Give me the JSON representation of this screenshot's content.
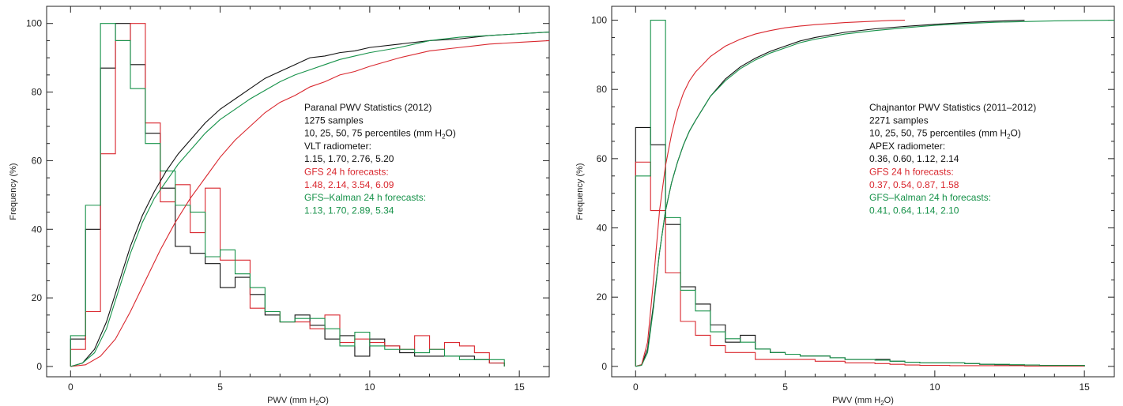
{
  "colors": {
    "black": "#111111",
    "red": "#d9272e",
    "green": "#17924a"
  },
  "chart_data": [
    {
      "type": "line",
      "xlabel": "PWV (mm H",
      "xlabel_sub": "2",
      "xlabel_end": "O)",
      "ylabel": "Frequency (%)",
      "xlim": [
        -0.8,
        16
      ],
      "ylim": [
        -3,
        105
      ],
      "x_ticks": [
        0,
        5,
        10,
        15
      ],
      "y_ticks": [
        0,
        20,
        40,
        60,
        80,
        100
      ],
      "annotation": [
        {
          "text": "Paranal PWV Statistics (2012)",
          "color": "#111111"
        },
        {
          "text": "1275 samples",
          "color": "#111111"
        },
        {
          "text": "10, 25, 50, 75 percentiles (mm H",
          "sub": "2",
          "end": "O)",
          "color": "#111111"
        },
        {
          "text": "VLT radiometer:",
          "color": "#111111"
        },
        {
          "text": "1.15, 1.70, 2.76, 5.20",
          "color": "#111111"
        },
        {
          "text": "GFS 24 h forecasts:",
          "color": "#d9272e"
        },
        {
          "text": "1.48, 2.14, 3.54, 6.09",
          "color": "#d9272e"
        },
        {
          "text": "GFS–Kalman 24 h forecasts:",
          "color": "#17924a"
        },
        {
          "text": "1.13, 1.70, 2.89, 5.34",
          "color": "#17924a"
        }
      ],
      "series": [
        {
          "color": "black",
          "kind": "hist",
          "edges": [
            0,
            0.5,
            1,
            1.5,
            2,
            2.5,
            3,
            3.5,
            4,
            4.5,
            5,
            5.5,
            6,
            6.5,
            7,
            7.5,
            8,
            8.5,
            9,
            9.5,
            10,
            10.5,
            11,
            11.5,
            12,
            12.5,
            13,
            13.5,
            14,
            14.5
          ],
          "values": [
            8,
            40,
            87,
            100,
            88,
            68,
            52,
            35,
            33,
            30,
            23,
            26,
            21,
            15,
            13,
            15,
            12,
            8,
            9,
            3,
            8,
            6,
            4,
            3,
            3,
            3,
            3,
            2,
            1
          ]
        },
        {
          "color": "red",
          "kind": "hist",
          "edges": [
            0,
            0.5,
            1,
            1.5,
            2,
            2.5,
            3,
            3.5,
            4,
            4.5,
            5,
            5.5,
            6,
            6.5,
            7,
            7.5,
            8,
            8.5,
            9,
            9.5,
            10,
            10.5,
            11,
            11.5,
            12,
            12.5,
            13,
            13.5,
            14,
            14.5
          ],
          "values": [
            5,
            16,
            62,
            95,
            100,
            71,
            48,
            53,
            39,
            52,
            31,
            31,
            17,
            16,
            13,
            13,
            11,
            15,
            7,
            8,
            7,
            6,
            5,
            9,
            5,
            7,
            6,
            4,
            1
          ]
        },
        {
          "color": "green",
          "kind": "hist",
          "edges": [
            0,
            0.5,
            1,
            1.5,
            2,
            2.5,
            3,
            3.5,
            4,
            4.5,
            5,
            5.5,
            6,
            6.5,
            7,
            7.5,
            8,
            8.5,
            9,
            9.5,
            10,
            10.5,
            11,
            11.5,
            12,
            12.5,
            13,
            13.5,
            14,
            14.5
          ],
          "values": [
            9,
            47,
            100,
            95,
            81,
            65,
            57,
            47,
            45,
            32,
            34,
            27,
            23,
            16,
            13,
            14,
            14,
            11,
            6,
            10,
            6,
            5,
            5,
            4,
            5,
            3,
            2,
            2,
            2
          ]
        },
        {
          "color": "black",
          "kind": "cdf",
          "x": [
            0,
            0.4,
            0.8,
            1.2,
            1.6,
            2,
            2.4,
            2.8,
            3.2,
            3.6,
            4,
            4.5,
            5,
            5.5,
            6,
            6.5,
            7,
            7.5,
            8,
            8.5,
            9,
            9.5,
            10,
            11,
            12,
            13,
            14,
            15,
            16
          ],
          "y": [
            0,
            1,
            5,
            13,
            24,
            35,
            44,
            51,
            57,
            62,
            66,
            71,
            75,
            78,
            81,
            84,
            86,
            88,
            90,
            90.5,
            91.5,
            92,
            93,
            94,
            95,
            95.5,
            96.5,
            97,
            97.5
          ]
        },
        {
          "color": "red",
          "kind": "cdf",
          "x": [
            0,
            0.5,
            1,
            1.5,
            2,
            2.5,
            3,
            3.5,
            4,
            4.5,
            5,
            5.5,
            6,
            6.5,
            7,
            7.5,
            8,
            8.5,
            9,
            9.5,
            10,
            11,
            12,
            13,
            14,
            15,
            16
          ],
          "y": [
            0,
            0.5,
            3,
            8,
            16,
            25,
            34,
            42,
            49,
            55,
            61,
            66,
            70,
            74,
            77,
            79,
            81.5,
            83,
            85,
            86,
            87.5,
            90,
            92,
            93,
            94,
            94.5,
            95
          ]
        },
        {
          "color": "green",
          "kind": "cdf",
          "x": [
            0,
            0.4,
            0.8,
            1.2,
            1.6,
            2,
            2.4,
            2.8,
            3.2,
            3.6,
            4,
            4.5,
            5,
            5.5,
            6,
            6.5,
            7,
            7.5,
            8,
            8.5,
            9,
            9.5,
            10,
            11,
            12,
            13,
            14,
            15,
            16
          ],
          "y": [
            0,
            1,
            4,
            11,
            22,
            33,
            42,
            49,
            54,
            59,
            63,
            68,
            72,
            75,
            78,
            80.5,
            83,
            85,
            86.5,
            88,
            89.5,
            90.5,
            91.5,
            93,
            95,
            96,
            96.5,
            97,
            97.5
          ]
        }
      ]
    },
    {
      "type": "line",
      "xlabel": "PWV (mm H",
      "xlabel_sub": "2",
      "xlabel_end": "O)",
      "ylabel": "Frequency (%)",
      "xlim": [
        -0.8,
        16
      ],
      "ylim": [
        -3,
        104
      ],
      "x_ticks": [
        0,
        5,
        10,
        15
      ],
      "y_ticks": [
        0,
        20,
        40,
        60,
        80,
        100
      ],
      "annotation": [
        {
          "text": "Chajnantor PWV Statistics (2011–2012)",
          "color": "#111111"
        },
        {
          "text": "2271 samples",
          "color": "#111111"
        },
        {
          "text": "10, 25, 50, 75 percentiles (mm H",
          "sub": "2",
          "end": "O)",
          "color": "#111111"
        },
        {
          "text": "APEX radiometer:",
          "color": "#111111"
        },
        {
          "text": "0.36, 0.60, 1.12, 2.14",
          "color": "#111111"
        },
        {
          "text": "GFS 24 h forecasts:",
          "color": "#d9272e"
        },
        {
          "text": "0.37, 0.54, 0.87, 1.58",
          "color": "#d9272e"
        },
        {
          "text": "GFS–Kalman 24 h forecasts:",
          "color": "#17924a"
        },
        {
          "text": "0.41, 0.64, 1.14, 2.10",
          "color": "#17924a"
        }
      ],
      "series": [
        {
          "color": "black",
          "kind": "hist",
          "edges": [
            0,
            0.5,
            1,
            1.5,
            2,
            2.5,
            3,
            3.5,
            4,
            4.5,
            5,
            5.5,
            6,
            6.5,
            7,
            7.5,
            8,
            8.5,
            9,
            9.5,
            10,
            10.5,
            11,
            11.5,
            12,
            12.5,
            13,
            13.5,
            14,
            14.5,
            15
          ],
          "values": [
            69,
            64,
            41,
            23,
            18,
            12,
            7,
            9,
            5,
            4,
            3.5,
            3,
            3,
            2.5,
            2,
            2,
            2,
            1.5,
            1.2,
            1,
            1,
            1,
            0.8,
            0.6,
            0.5,
            0.4,
            0.4,
            0.3,
            0.3,
            0.3
          ]
        },
        {
          "color": "red",
          "kind": "hist",
          "edges": [
            0,
            0.5,
            1,
            1.5,
            2,
            2.5,
            3,
            3.5,
            4,
            4.5,
            5,
            5.5,
            6,
            6.5,
            7,
            7.5,
            8,
            8.5,
            9,
            9.5,
            10,
            10.5,
            11,
            11.5,
            12,
            12.5,
            13,
            13.5,
            14,
            14.5,
            15
          ],
          "values": [
            59,
            45,
            27,
            13,
            9,
            6,
            4,
            4,
            2,
            2,
            2,
            2,
            1.5,
            1.5,
            1,
            1,
            0.8,
            0.6,
            0.4,
            0.3,
            0.3,
            0.2,
            0.2,
            0.2,
            0.2,
            0.2,
            0.1,
            0.1,
            0.1,
            0.1
          ]
        },
        {
          "color": "green",
          "kind": "hist",
          "edges": [
            0,
            0.5,
            1,
            1.5,
            2,
            2.5,
            3,
            3.5,
            4,
            4.5,
            5,
            5.5,
            6,
            6.5,
            7,
            7.5,
            8,
            8.5,
            9,
            9.5,
            10,
            10.5,
            11,
            11.5,
            12,
            12.5,
            13,
            13.5,
            14,
            14.5,
            15
          ],
          "values": [
            55,
            100,
            43,
            22,
            16,
            10,
            8,
            7,
            5,
            4,
            3.5,
            3,
            3,
            2.5,
            2,
            2,
            1.8,
            1.5,
            1.2,
            1,
            1,
            1,
            0.8,
            0.6,
            0.6,
            0.5,
            0.4,
            0.3,
            0.3,
            0.3
          ]
        },
        {
          "color": "black",
          "kind": "cdf",
          "x": [
            0,
            0.2,
            0.4,
            0.6,
            0.8,
            1,
            1.2,
            1.4,
            1.6,
            1.8,
            2,
            2.5,
            3,
            3.5,
            4,
            4.5,
            5,
            5.5,
            6,
            7,
            8,
            9,
            10,
            11,
            12,
            13
          ],
          "y": [
            0,
            0.5,
            5,
            18,
            33,
            45,
            53,
            59,
            64,
            68,
            71,
            78,
            83,
            86.5,
            89,
            91,
            92.5,
            94,
            95,
            96.5,
            97.5,
            98.2,
            98.8,
            99.3,
            99.7,
            100
          ]
        },
        {
          "color": "red",
          "kind": "cdf",
          "x": [
            0,
            0.2,
            0.4,
            0.6,
            0.8,
            1,
            1.2,
            1.4,
            1.6,
            1.8,
            2,
            2.5,
            3,
            3.5,
            4,
            4.5,
            5,
            5.5,
            6,
            7,
            8,
            8.5,
            9
          ],
          "y": [
            0,
            0.5,
            7,
            25,
            45,
            58,
            67,
            74,
            79,
            82.5,
            85,
            89.5,
            92.5,
            94.5,
            96,
            97,
            97.8,
            98.3,
            98.7,
            99.3,
            99.7,
            99.9,
            100
          ]
        },
        {
          "color": "green",
          "kind": "cdf",
          "x": [
            0,
            0.2,
            0.4,
            0.6,
            0.8,
            1,
            1.2,
            1.4,
            1.6,
            1.8,
            2,
            2.5,
            3,
            3.5,
            4,
            4.5,
            5,
            5.5,
            6,
            7,
            8,
            9,
            10,
            11,
            12,
            13,
            14,
            15,
            16
          ],
          "y": [
            0,
            0.3,
            4,
            17,
            33,
            45,
            53,
            59,
            64,
            68,
            71,
            78,
            82.5,
            86,
            88.5,
            90.5,
            92,
            93.5,
            94.5,
            96,
            97,
            97.8,
            98.5,
            99,
            99.4,
            99.6,
            99.8,
            99.9,
            100
          ]
        }
      ]
    }
  ]
}
